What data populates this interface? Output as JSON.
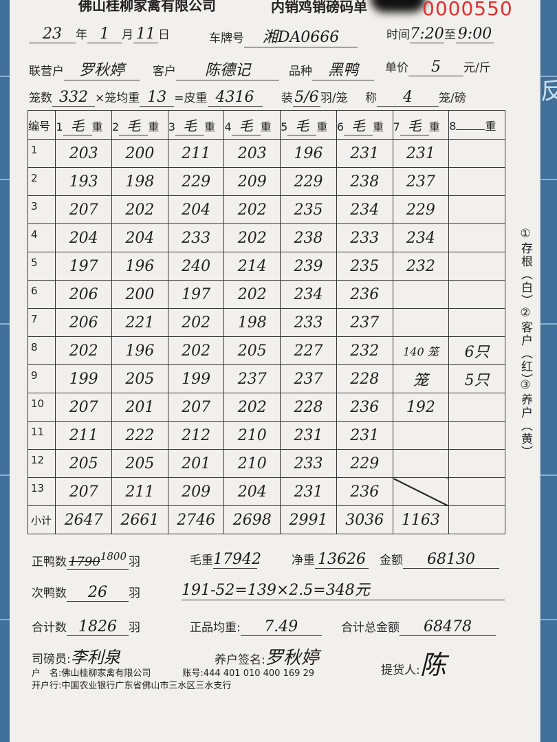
{
  "header": {
    "company": "佛山桂柳家禽有限公司",
    "form_title": "内销鸡销磅码单",
    "serial": "0000550",
    "serial_color": "#e03030"
  },
  "date": {
    "year": "23",
    "year_label": "年",
    "month": "1",
    "month_label": "月",
    "day": "11",
    "day_label": "日"
  },
  "plate": {
    "label": "车牌号",
    "value": "湘DA0666"
  },
  "time": {
    "label": "时间",
    "start": "7:20",
    "sep": "至",
    "end": "9:00"
  },
  "partner": {
    "label": "联营户",
    "value": "罗秋婷"
  },
  "customer": {
    "label": "客户",
    "value": "陈德记"
  },
  "breed": {
    "label": "品种",
    "value": "黑鸭"
  },
  "price": {
    "label": "单价",
    "value": "5",
    "unit": "元/斤"
  },
  "cages": {
    "label": "笼数",
    "value": "332",
    "times": "×笼均重",
    "avg": "13",
    "eq": "=皮重",
    "tare": "4316",
    "pack_label": "装",
    "pack": "5/6",
    "pack_unit": "羽/笼",
    "weigh_label": "称",
    "weigh": "4",
    "weigh_unit": "笼/磅"
  },
  "table": {
    "header": {
      "no": "编号",
      "cols": [
        {
          "n": "1",
          "v": "毛",
          "u": "重"
        },
        {
          "n": "2",
          "v": "毛",
          "u": "重"
        },
        {
          "n": "3",
          "v": "毛",
          "u": "重"
        },
        {
          "n": "4",
          "v": "毛",
          "u": "重"
        },
        {
          "n": "5",
          "v": "毛",
          "u": "重"
        },
        {
          "n": "6",
          "v": "毛",
          "u": "重"
        },
        {
          "n": "7",
          "v": "毛",
          "u": "重"
        },
        {
          "n": "8",
          "v": "",
          "u": "重"
        }
      ]
    },
    "rows": [
      {
        "no": "1",
        "v": [
          "203",
          "200",
          "211",
          "203",
          "196",
          "231",
          "231",
          ""
        ]
      },
      {
        "no": "2",
        "v": [
          "193",
          "198",
          "229",
          "209",
          "229",
          "238",
          "237",
          ""
        ]
      },
      {
        "no": "3",
        "v": [
          "207",
          "202",
          "204",
          "202",
          "235",
          "234",
          "229",
          ""
        ]
      },
      {
        "no": "4",
        "v": [
          "204",
          "204",
          "233",
          "202",
          "238",
          "233",
          "234",
          ""
        ]
      },
      {
        "no": "5",
        "v": [
          "197",
          "196",
          "240",
          "214",
          "239",
          "235",
          "232",
          ""
        ]
      },
      {
        "no": "6",
        "v": [
          "206",
          "200",
          "197",
          "202",
          "234",
          "236",
          "",
          ""
        ]
      },
      {
        "no": "7",
        "v": [
          "206",
          "221",
          "202",
          "198",
          "233",
          "237",
          "",
          ""
        ]
      },
      {
        "no": "8",
        "v": [
          "202",
          "196",
          "202",
          "205",
          "227",
          "232",
          "140 笼",
          "6只"
        ]
      },
      {
        "no": "9",
        "v": [
          "199",
          "205",
          "199",
          "237",
          "237",
          "228",
          "笼",
          "5只"
        ]
      },
      {
        "no": "10",
        "v": [
          "207",
          "201",
          "207",
          "202",
          "228",
          "236",
          "192",
          ""
        ]
      },
      {
        "no": "11",
        "v": [
          "211",
          "222",
          "212",
          "210",
          "231",
          "231",
          "",
          ""
        ]
      },
      {
        "no": "12",
        "v": [
          "205",
          "205",
          "201",
          "210",
          "233",
          "229",
          "",
          ""
        ]
      },
      {
        "no": "13",
        "v": [
          "207",
          "211",
          "209",
          "204",
          "231",
          "236",
          "",
          ""
        ]
      }
    ],
    "subtotal": {
      "label": "小计",
      "v": [
        "2647",
        "2661",
        "2746",
        "2698",
        "2991",
        "3036",
        "1163",
        ""
      ]
    }
  },
  "copies": [
    "①存根（白）",
    "②客户（红）",
    "③养户（黄）"
  ],
  "summary": {
    "good_label": "正鸭数",
    "good": "1800",
    "good_struck": "1790",
    "unit": "羽",
    "gross_label": "毛重",
    "gross": "17942",
    "net_label": "净重",
    "net": "13626",
    "amount_label": "金额",
    "amount": "68130",
    "sub_label": "次鸭数",
    "sub": "26",
    "note": "191-52=139×2.5=348元",
    "total_label": "合计数",
    "total": "1826",
    "avg_label": "正品均重:",
    "avg": "7.49",
    "grand_label": "合计总金额",
    "grand": "68478"
  },
  "signatures": {
    "weigher_label": "司磅员:",
    "weigher": "李利泉",
    "farmer_label": "养户签名:",
    "farmer": "罗秋婷",
    "pickup_label": "提货人:",
    "pickup": "陈"
  },
  "bank": {
    "name_label": "户　名:",
    "name": "佛山桂柳家禽有限公司",
    "acct_label": "账号:",
    "acct": "444 401 010 400 169 29",
    "bank_label": "开户行:",
    "bank": "中国农业银行广东省佛山市三水区三水支行"
  },
  "background_text": "反"
}
